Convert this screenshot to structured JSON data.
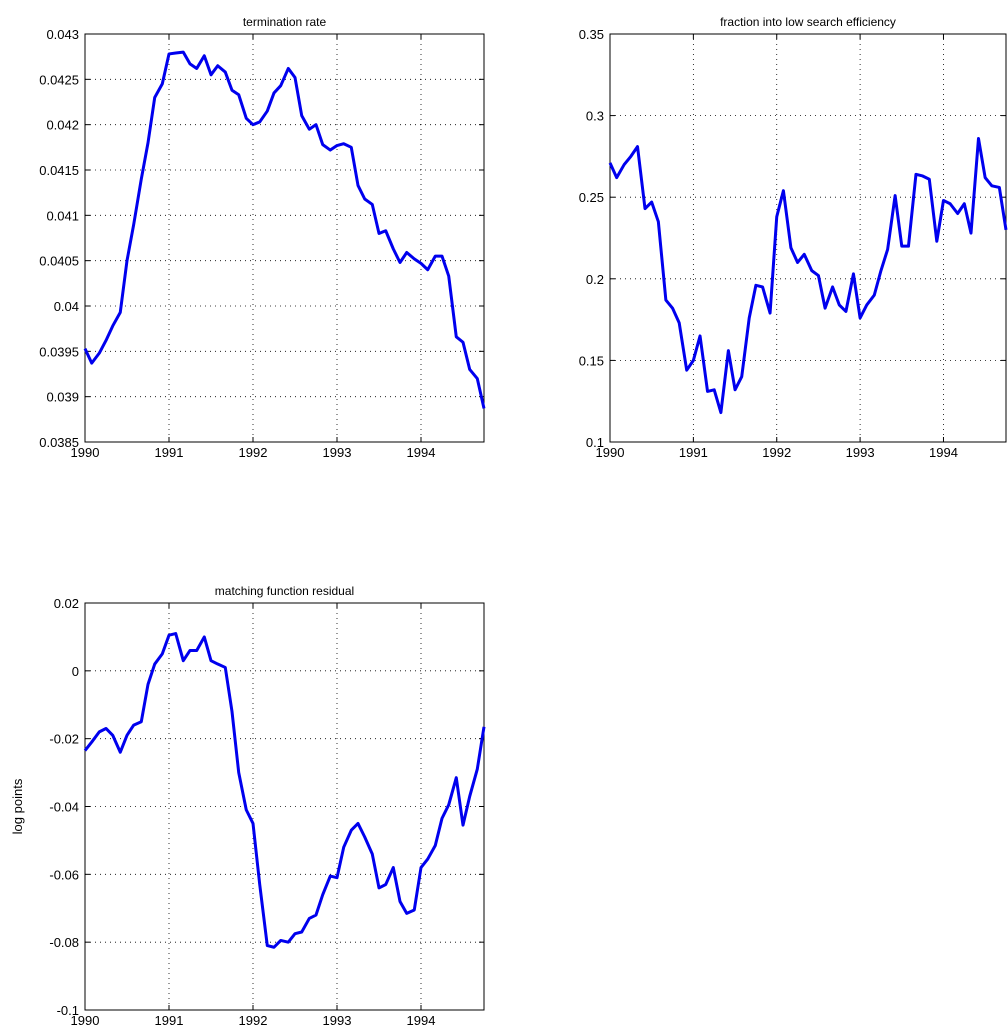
{
  "chart_data": [
    {
      "type": "line",
      "title": "termination rate",
      "x": [
        1990,
        1990.08,
        1990.17,
        1990.25,
        1990.33,
        1990.42,
        1990.5,
        1990.58,
        1990.67,
        1990.75,
        1990.83,
        1990.92,
        1991,
        1991.08,
        1991.17,
        1991.25,
        1991.33,
        1991.42,
        1991.5,
        1991.58,
        1991.67,
        1991.75,
        1991.83,
        1991.92,
        1992,
        1992.08,
        1992.17,
        1992.25,
        1992.33,
        1992.42,
        1992.5,
        1992.58,
        1992.67,
        1992.75,
        1992.83,
        1992.92,
        1993,
        1993.08,
        1993.17,
        1993.25,
        1993.33,
        1993.42,
        1993.5,
        1993.58,
        1993.67,
        1993.75,
        1993.83,
        1993.92,
        1994,
        1994.08,
        1994.17,
        1994.25,
        1994.33,
        1994.42,
        1994.5,
        1994.58,
        1994.67,
        1994.75
      ],
      "values": [
        0.03953,
        0.03937,
        0.03948,
        0.03962,
        0.03978,
        0.03993,
        0.0405,
        0.0409,
        0.0414,
        0.0418,
        0.0423,
        0.04245,
        0.04278,
        0.04279,
        0.0428,
        0.04267,
        0.04262,
        0.04276,
        0.04255,
        0.04265,
        0.04258,
        0.04238,
        0.04233,
        0.04207,
        0.042,
        0.04203,
        0.04215,
        0.04235,
        0.04243,
        0.04262,
        0.04252,
        0.0421,
        0.04195,
        0.042,
        0.04178,
        0.04172,
        0.04177,
        0.04179,
        0.04175,
        0.04133,
        0.04118,
        0.04112,
        0.0408,
        0.04083,
        0.04063,
        0.04048,
        0.04059,
        0.04052,
        0.04047,
        0.0404,
        0.04055,
        0.04055,
        0.04033,
        0.03966,
        0.0396,
        0.0393,
        0.0392,
        0.03887
      ],
      "color": "#0000ee",
      "xlim": [
        1990,
        1994.75
      ],
      "xticks": [
        1990,
        1991,
        1992,
        1993,
        1994
      ],
      "ylim": [
        0.0385,
        0.043
      ],
      "yticks": [
        0.0385,
        0.039,
        0.0395,
        0.04,
        0.0405,
        0.041,
        0.0415,
        0.042,
        0.0425,
        0.043
      ],
      "grid": true
    },
    {
      "type": "line",
      "title": "fraction into low search efficiency",
      "x": [
        1990,
        1990.08,
        1990.17,
        1990.25,
        1990.33,
        1990.42,
        1990.5,
        1990.58,
        1990.67,
        1990.75,
        1990.83,
        1990.92,
        1991,
        1991.08,
        1991.17,
        1991.25,
        1991.33,
        1991.42,
        1991.5,
        1991.58,
        1991.67,
        1991.75,
        1991.83,
        1991.92,
        1992,
        1992.08,
        1992.17,
        1992.25,
        1992.33,
        1992.42,
        1992.5,
        1992.58,
        1992.67,
        1992.75,
        1992.83,
        1992.92,
        1993,
        1993.08,
        1993.17,
        1993.25,
        1993.33,
        1993.42,
        1993.5,
        1993.58,
        1993.67,
        1993.75,
        1993.83,
        1993.92,
        1994,
        1994.08,
        1994.17,
        1994.25,
        1994.33,
        1994.42,
        1994.5,
        1994.58,
        1994.67,
        1994.75
      ],
      "values": [
        0.271,
        0.262,
        0.27,
        0.275,
        0.281,
        0.243,
        0.247,
        0.235,
        0.187,
        0.182,
        0.173,
        0.144,
        0.15,
        0.165,
        0.131,
        0.132,
        0.118,
        0.156,
        0.132,
        0.14,
        0.176,
        0.196,
        0.195,
        0.179,
        0.238,
        0.254,
        0.219,
        0.21,
        0.215,
        0.205,
        0.202,
        0.182,
        0.195,
        0.184,
        0.18,
        0.203,
        0.176,
        0.184,
        0.19,
        0.205,
        0.218,
        0.251,
        0.22,
        0.22,
        0.264,
        0.263,
        0.261,
        0.223,
        0.248,
        0.246,
        0.24,
        0.246,
        0.228,
        0.286,
        0.262,
        0.257,
        0.256,
        0.23
      ],
      "color": "#0000ee",
      "xlim": [
        1990,
        1994.75
      ],
      "xticks": [
        1990,
        1991,
        1992,
        1993,
        1994
      ],
      "ylim": [
        0.1,
        0.35
      ],
      "yticks": [
        0.1,
        0.15,
        0.2,
        0.25,
        0.3,
        0.35
      ],
      "grid": true
    },
    {
      "type": "line",
      "title": "matching function residual",
      "ylabel": "log points",
      "x": [
        1990,
        1990.08,
        1990.17,
        1990.25,
        1990.33,
        1990.42,
        1990.5,
        1990.58,
        1990.67,
        1990.75,
        1990.83,
        1990.92,
        1991,
        1991.08,
        1991.17,
        1991.25,
        1991.33,
        1991.42,
        1991.5,
        1991.58,
        1991.67,
        1991.75,
        1991.83,
        1991.92,
        1992,
        1992.08,
        1992.17,
        1992.25,
        1992.33,
        1992.42,
        1992.5,
        1992.58,
        1992.67,
        1992.75,
        1992.83,
        1992.92,
        1993,
        1993.08,
        1993.17,
        1993.25,
        1993.33,
        1993.42,
        1993.5,
        1993.58,
        1993.67,
        1993.75,
        1993.83,
        1993.92,
        1994,
        1994.08,
        1994.17,
        1994.25,
        1994.33,
        1994.42,
        1994.5,
        1994.58,
        1994.67,
        1994.75
      ],
      "values": [
        -0.0235,
        -0.021,
        -0.018,
        -0.017,
        -0.019,
        -0.024,
        -0.019,
        -0.016,
        -0.015,
        -0.004,
        0.002,
        0.005,
        0.0105,
        0.011,
        0.003,
        0.006,
        0.006,
        0.01,
        0.003,
        0.002,
        0.001,
        -0.012,
        -0.03,
        -0.041,
        -0.045,
        -0.063,
        -0.081,
        -0.0815,
        -0.0795,
        -0.08,
        -0.0775,
        -0.077,
        -0.073,
        -0.072,
        -0.066,
        -0.0605,
        -0.061,
        -0.052,
        -0.047,
        -0.045,
        -0.049,
        -0.054,
        -0.064,
        -0.063,
        -0.058,
        -0.068,
        -0.0715,
        -0.0705,
        -0.058,
        -0.0555,
        -0.0515,
        -0.0435,
        -0.0395,
        -0.0315,
        -0.0455,
        -0.037,
        -0.029,
        -0.0165
      ],
      "color": "#0000ee",
      "xlim": [
        1990,
        1994.75
      ],
      "xticks": [
        1990,
        1991,
        1992,
        1993,
        1994
      ],
      "ylim": [
        -0.1,
        0.02
      ],
      "yticks": [
        -0.1,
        -0.08,
        -0.06,
        -0.04,
        -0.02,
        0,
        0.02
      ],
      "grid": true
    }
  ]
}
